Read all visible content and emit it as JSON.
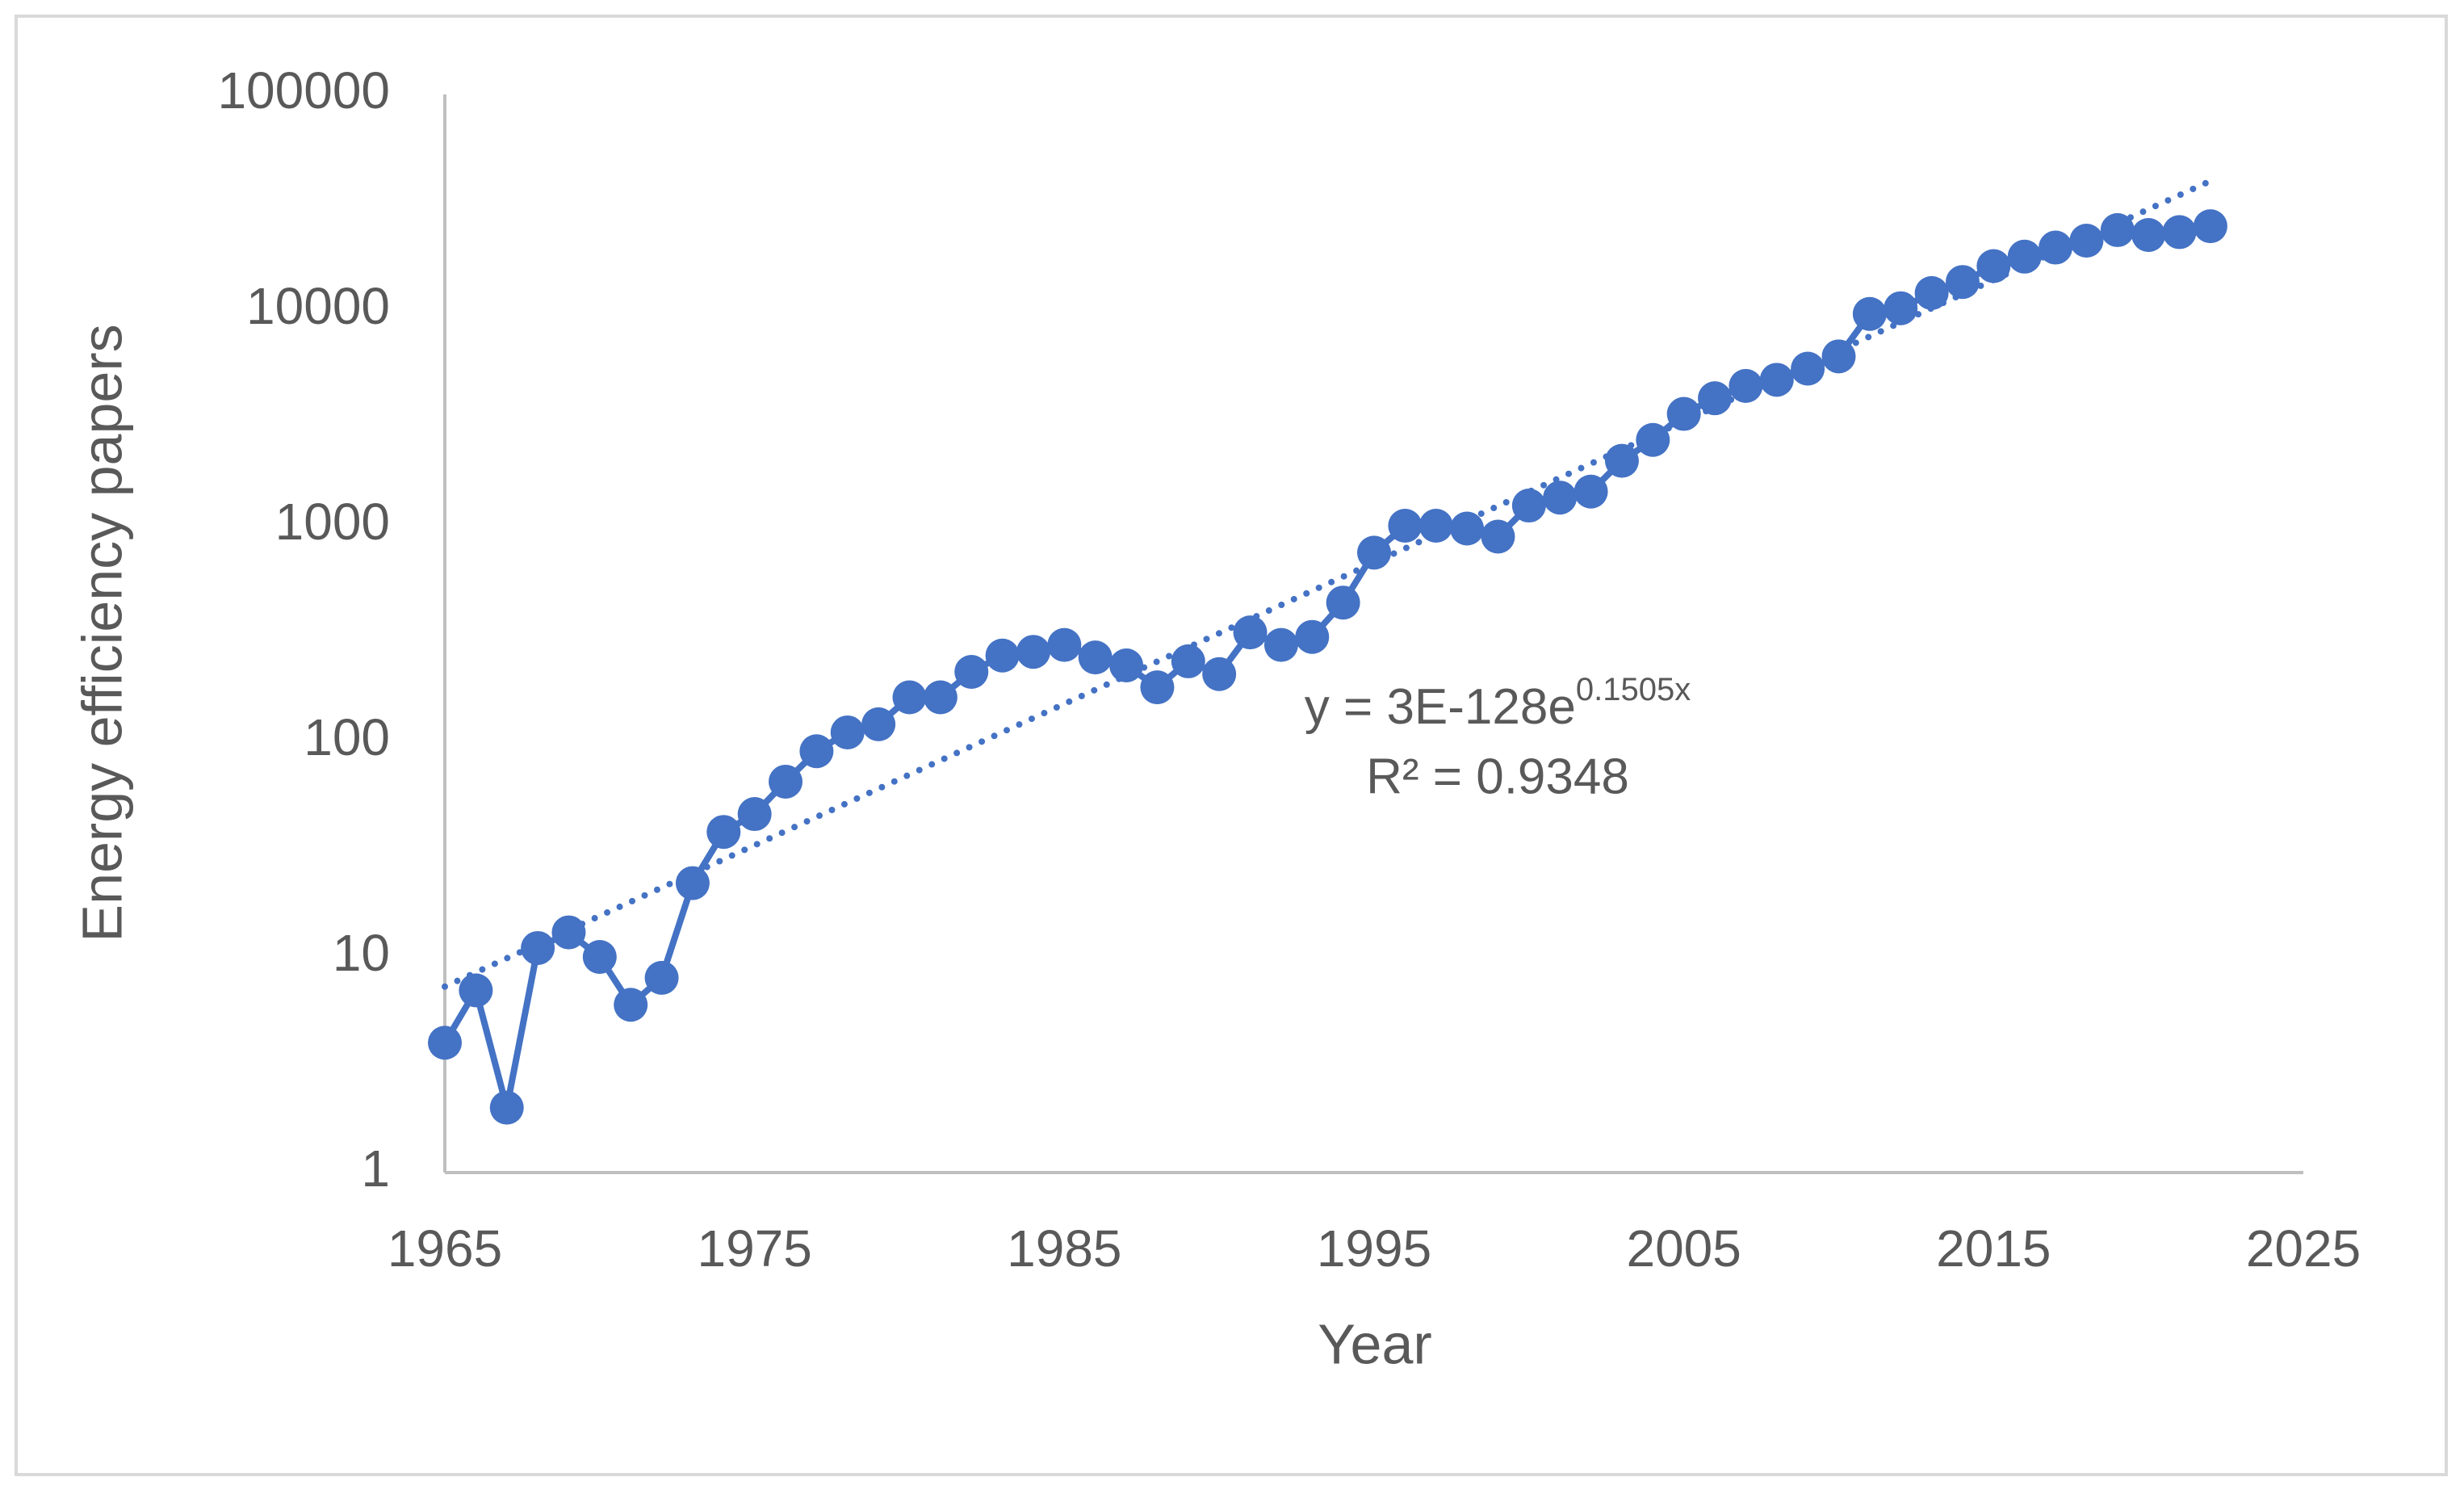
{
  "chart_data": {
    "type": "line",
    "x": [
      1965,
      1966,
      1967,
      1968,
      1969,
      1970,
      1971,
      1972,
      1973,
      1974,
      1975,
      1976,
      1977,
      1978,
      1979,
      1980,
      1981,
      1982,
      1983,
      1984,
      1985,
      1986,
      1987,
      1988,
      1989,
      1990,
      1991,
      1992,
      1993,
      1994,
      1995,
      1996,
      1997,
      1998,
      1999,
      2000,
      2001,
      2002,
      2003,
      2004,
      2005,
      2006,
      2007,
      2008,
      2009,
      2010,
      2011,
      2012,
      2013,
      2014,
      2015,
      2016,
      2017,
      2018,
      2019,
      2020,
      2021,
      2022
    ],
    "values": [
      4,
      7,
      2,
      11,
      13,
      10,
      6,
      8,
      22,
      38,
      46,
      65,
      90,
      110,
      120,
      160,
      160,
      210,
      250,
      260,
      280,
      245,
      225,
      178,
      235,
      205,
      320,
      280,
      305,
      440,
      750,
      1000,
      1000,
      970,
      890,
      1240,
      1350,
      1440,
      2000,
      2500,
      3300,
      3900,
      4450,
      4750,
      5350,
      6100,
      9600,
      10200,
      12000,
      13500,
      16000,
      17700,
      19500,
      21000,
      23500,
      22300,
      23000,
      24500
    ],
    "color": "#4472c4",
    "x_label": "Year",
    "y_label": "Energy efficiency papers",
    "xlim": [
      1965,
      2025
    ],
    "xticks": [
      1965,
      1975,
      1985,
      1995,
      2005,
      2015,
      2025
    ],
    "ylim": [
      1,
      100000
    ],
    "yticks": [
      1,
      10,
      100,
      1000,
      10000,
      100000
    ],
    "y_log": true,
    "trendline": {
      "type": "exponential",
      "equation": "y = 3E-128e",
      "exponent": "0.1505x",
      "r_squared": "R² = 0.9348"
    }
  }
}
